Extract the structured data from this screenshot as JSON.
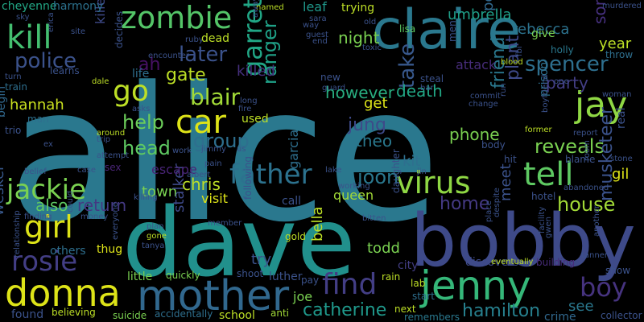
{
  "words": [
    {
      "text": "alice",
      "color": "#2a788e"
    },
    {
      "text": "dave",
      "color": "#21908c"
    },
    {
      "text": "bobby",
      "color": "#3e4a89"
    },
    {
      "text": "claire",
      "color": "#2a788e"
    },
    {
      "text": "jenny",
      "color": "#35b779"
    },
    {
      "text": "donna",
      "color": "#dde318"
    },
    {
      "text": "mother",
      "color": "#31688e"
    },
    {
      "text": "zombie",
      "color": "#54c568"
    },
    {
      "text": "kill",
      "color": "#44bf70"
    },
    {
      "text": "jackie",
      "color": "#7ad151"
    },
    {
      "text": "father",
      "color": "#2c728e"
    },
    {
      "text": "virus",
      "color": "#8fd744"
    },
    {
      "text": "tell",
      "color": "#5ec962"
    },
    {
      "text": "jay",
      "color": "#8fd744"
    },
    {
      "text": "car",
      "color": "#dde318"
    },
    {
      "text": "girl",
      "color": "#dde318"
    },
    {
      "text": "find",
      "color": "#433e85"
    },
    {
      "text": "boy",
      "color": "#46337f"
    },
    {
      "text": "garrett",
      "color": "#21a685"
    },
    {
      "text": "rosie",
      "color": "#433e85"
    },
    {
      "text": "go",
      "color": "#bddf26"
    },
    {
      "text": "police",
      "color": "#3b528b"
    },
    {
      "text": "spencer",
      "color": "#2e6f8e"
    },
    {
      "text": "later",
      "color": "#3b528b"
    },
    {
      "text": "blair",
      "color": "#a2da37"
    },
    {
      "text": "gate",
      "color": "#bddf26"
    },
    {
      "text": "group",
      "color": "#2e6f8e"
    },
    {
      "text": "help",
      "color": "#6ccd5a"
    },
    {
      "text": "head",
      "color": "#5ec962"
    },
    {
      "text": "party",
      "color": "#433e85"
    },
    {
      "text": "reveals",
      "color": "#7ad151"
    },
    {
      "text": "house",
      "color": "#a2da37"
    },
    {
      "text": "hamilton",
      "color": "#27808e"
    },
    {
      "text": "catherine",
      "color": "#1f988b"
    },
    {
      "text": "joon",
      "color": "#2a788e"
    },
    {
      "text": "jung",
      "color": "#3e4a89"
    },
    {
      "text": "take",
      "color": "#38588c"
    },
    {
      "text": "ranger",
      "color": "#1fa187"
    },
    {
      "text": "death",
      "color": "#22a785"
    },
    {
      "text": "however",
      "color": "#28ae80"
    },
    {
      "text": "night",
      "color": "#7ad151"
    },
    {
      "text": "umbrella",
      "color": "#1f9f88"
    },
    {
      "text": "rebecca",
      "color": "#2c728e"
    },
    {
      "text": "killed",
      "color": "#46307e"
    },
    {
      "text": "hannah",
      "color": "#cae11f"
    },
    {
      "text": "ah",
      "color": "#471164"
    },
    {
      "text": "home",
      "color": "#443983"
    },
    {
      "text": "friend",
      "color": "#2a788e"
    },
    {
      "text": "plant",
      "color": "#3e4a89"
    },
    {
      "text": "musketeer",
      "color": "#3b528b"
    },
    {
      "text": "return",
      "color": "#443983"
    },
    {
      "text": "also",
      "color": "#5ec962"
    },
    {
      "text": "chris",
      "color": "#bddf26"
    },
    {
      "text": "town",
      "color": "#7ad151"
    },
    {
      "text": "theo",
      "color": "#2a788e"
    },
    {
      "text": "phone",
      "color": "#7ad151"
    },
    {
      "text": "kit",
      "color": "#2e6f8e"
    },
    {
      "text": "get",
      "color": "#dde318"
    },
    {
      "text": "year",
      "color": "#bddf26"
    },
    {
      "text": "son",
      "color": "#46307e"
    },
    {
      "text": "gil",
      "color": "#dde318"
    },
    {
      "text": "meet",
      "color": "#3b528b"
    },
    {
      "text": "see",
      "color": "#2a788e"
    },
    {
      "text": "todd",
      "color": "#7ad151"
    },
    {
      "text": "bella",
      "color": "#bddf26"
    },
    {
      "text": "try",
      "color": "#3b528b"
    },
    {
      "text": "joe",
      "color": "#7ad151"
    },
    {
      "text": "queen",
      "color": "#a2da37"
    },
    {
      "text": "stalker",
      "color": "#3e4a89"
    },
    {
      "text": "wesker",
      "color": "#38588c"
    },
    {
      "text": "perry",
      "color": "#31688e"
    },
    {
      "text": "attack",
      "color": "#472c7a"
    },
    {
      "text": "killer",
      "color": "#3e4a89"
    },
    {
      "text": "escape",
      "color": "#482475"
    },
    {
      "text": "visit",
      "color": "#dde318"
    },
    {
      "text": "cheyenne",
      "color": "#22a785"
    },
    {
      "text": "harmony",
      "color": "#2c728e"
    },
    {
      "text": "leaf",
      "color": "#1f988b"
    },
    {
      "text": "trying",
      "color": "#bddf26"
    },
    {
      "text": "lisa",
      "color": "#5ec962"
    },
    {
      "text": "give",
      "color": "#7ad151"
    },
    {
      "text": "holly",
      "color": "#2a788e"
    },
    {
      "text": "throw",
      "color": "#2e6f8e"
    },
    {
      "text": "prison",
      "color": "#2e6f8e"
    },
    {
      "text": "life",
      "color": "#2e6f8e"
    },
    {
      "text": "man",
      "color": "#2e6f8e"
    },
    {
      "text": "begin",
      "color": "#31688e"
    },
    {
      "text": "used",
      "color": "#bddf26"
    },
    {
      "text": "garcia",
      "color": "#2e6f8e"
    },
    {
      "text": "anti",
      "color": "#a2da37"
    },
    {
      "text": "school",
      "color": "#bddf26"
    },
    {
      "text": "found",
      "color": "#3b528b"
    },
    {
      "text": "suicide",
      "color": "#7ad151"
    },
    {
      "text": "little",
      "color": "#7ad151"
    },
    {
      "text": "others",
      "color": "#2e6f8e"
    },
    {
      "text": "thug",
      "color": "#dde318"
    },
    {
      "text": "gold",
      "color": "#bddf26"
    },
    {
      "text": "luther",
      "color": "#3b528b"
    },
    {
      "text": "lab",
      "color": "#bddf26"
    },
    {
      "text": "rain",
      "color": "#bddf26"
    },
    {
      "text": "city",
      "color": "#433e85"
    },
    {
      "text": "discovers",
      "color": "#3e4a89"
    },
    {
      "text": "building",
      "color": "#472c7a"
    },
    {
      "text": "show",
      "color": "#3b528b"
    },
    {
      "text": "collector",
      "color": "#3b528b"
    },
    {
      "text": "crime",
      "color": "#31688e"
    },
    {
      "text": "next",
      "color": "#bddf26"
    },
    {
      "text": "start",
      "color": "#2e6f8e"
    },
    {
      "text": "remembers",
      "color": "#2a788e"
    },
    {
      "text": "believing",
      "color": "#bddf26"
    },
    {
      "text": "accidentally",
      "color": "#2e6f8e"
    },
    {
      "text": "shoot",
      "color": "#3b528b"
    },
    {
      "text": "quickly",
      "color": "#7ad151"
    },
    {
      "text": "pay",
      "color": "#3b528b"
    },
    {
      "text": "sky",
      "color": "#3b528b"
    },
    {
      "text": "erica",
      "color": "#3b528b"
    },
    {
      "text": "site",
      "color": "#3b528b"
    },
    {
      "text": "turn",
      "color": "#3b528b"
    },
    {
      "text": "learns",
      "color": "#3b528b"
    },
    {
      "text": "train",
      "color": "#2e6f8e"
    },
    {
      "text": "trio",
      "color": "#3b528b"
    },
    {
      "text": "sex",
      "color": "#482475"
    },
    {
      "text": "belief",
      "color": "#3b528b"
    },
    {
      "text": "case",
      "color": "#3b528b"
    },
    {
      "text": "finding",
      "color": "#3b528b"
    },
    {
      "text": "relationship",
      "color": "#3b528b"
    },
    {
      "text": "could",
      "color": "#3b528b"
    },
    {
      "text": "money",
      "color": "#3b528b"
    },
    {
      "text": "everyone",
      "color": "#3b528b"
    },
    {
      "text": "plan",
      "color": "#3b528b"
    },
    {
      "text": "gone",
      "color": "#bddf26"
    },
    {
      "text": "tanya",
      "color": "#3b528b"
    },
    {
      "text": "killing",
      "color": "#3b528b"
    },
    {
      "text": "member",
      "color": "#3b528b"
    },
    {
      "text": "albert",
      "color": "#3b528b"
    },
    {
      "text": "pain",
      "color": "#3b528b"
    },
    {
      "text": "work",
      "color": "#3b528b"
    },
    {
      "text": "jimmy",
      "color": "#3b528b"
    },
    {
      "text": "us",
      "color": "#3b528b"
    },
    {
      "text": "attempt",
      "color": "#3b528b"
    },
    {
      "text": "around",
      "color": "#bddf26"
    },
    {
      "text": "trip",
      "color": "#3b528b"
    },
    {
      "text": "ex",
      "color": "#3b528b"
    },
    {
      "text": "asks",
      "color": "#3b528b"
    },
    {
      "text": "dale",
      "color": "#bddf26"
    },
    {
      "text": "decides",
      "color": "#3b528b"
    },
    {
      "text": "encounter",
      "color": "#3b528b"
    },
    {
      "text": "ruby",
      "color": "#3b528b"
    },
    {
      "text": "dead",
      "color": "#bddf26"
    },
    {
      "text": "long",
      "color": "#3b528b"
    },
    {
      "text": "fire",
      "color": "#3b528b"
    },
    {
      "text": "named",
      "color": "#bddf26"
    },
    {
      "text": "away",
      "color": "#3b528b"
    },
    {
      "text": "sara",
      "color": "#3b528b"
    },
    {
      "text": "way",
      "color": "#3b528b"
    },
    {
      "text": "end",
      "color": "#3b528b"
    },
    {
      "text": "guest",
      "color": "#3b528b"
    },
    {
      "text": "old",
      "color": "#3b528b"
    },
    {
      "text": "toxic",
      "color": "#3b528b"
    },
    {
      "text": "men",
      "color": "#3b528b"
    },
    {
      "text": "murdered",
      "color": "#3b528b"
    },
    {
      "text": "blood",
      "color": "#bddf26"
    },
    {
      "text": "fbi",
      "color": "#3b528b"
    },
    {
      "text": "new",
      "color": "#3b528b"
    },
    {
      "text": "guard",
      "color": "#3b528b"
    },
    {
      "text": "steal",
      "color": "#3b528b"
    },
    {
      "text": "bar",
      "color": "#3b528b"
    },
    {
      "text": "commit",
      "color": "#3b528b"
    },
    {
      "text": "change",
      "color": "#3b528b"
    },
    {
      "text": "one",
      "color": "#3b528b"
    },
    {
      "text": "woman",
      "color": "#3b528b"
    },
    {
      "text": "former",
      "color": "#bddf26"
    },
    {
      "text": "report",
      "color": "#3b528b"
    },
    {
      "text": "boyfriend",
      "color": "#3b528b"
    },
    {
      "text": "blame",
      "color": "#3b528b"
    },
    {
      "text": "room",
      "color": "#3b528b"
    },
    {
      "text": "run",
      "color": "#3b528b"
    },
    {
      "text": "body",
      "color": "#3b528b"
    },
    {
      "text": "hit",
      "color": "#3b528b"
    },
    {
      "text": "hotel",
      "color": "#3b528b"
    },
    {
      "text": "abandoned",
      "color": "#3b528b"
    },
    {
      "text": "despite",
      "color": "#3b528b"
    },
    {
      "text": "place",
      "color": "#3b528b"
    },
    {
      "text": "facility",
      "color": "#3b528b"
    },
    {
      "text": "gwen",
      "color": "#3b528b"
    },
    {
      "text": "another",
      "color": "#3b528b"
    },
    {
      "text": "tanner",
      "color": "#3b528b"
    },
    {
      "text": "eventually",
      "color": "#bddf26"
    },
    {
      "text": "daughter",
      "color": "#3b528b"
    },
    {
      "text": "bitten",
      "color": "#3b528b"
    },
    {
      "text": "working",
      "color": "#3b528b"
    },
    {
      "text": "lake",
      "color": "#3b528b"
    },
    {
      "text": "call",
      "color": "#3b528b"
    },
    {
      "text": "following",
      "color": "#3b528b"
    },
    {
      "text": "jin",
      "color": "#3b528b"
    },
    {
      "text": "real",
      "color": "#3b528b"
    },
    {
      "text": "stone",
      "color": "#3b528b"
    }
  ]
}
